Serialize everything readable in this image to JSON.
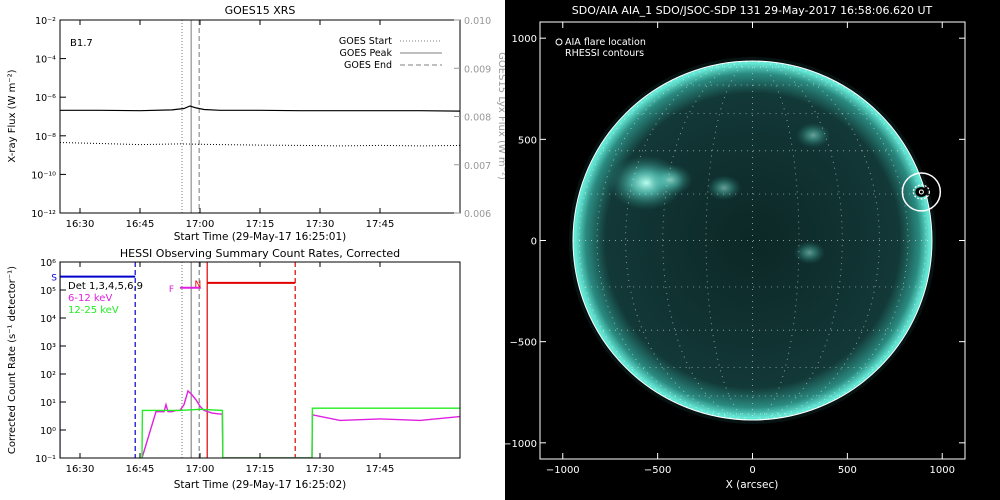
{
  "chart_data": [
    {
      "type": "line",
      "title": "GOES15 XRS",
      "xlabel": "Start Time (29-May-17 16:25:01)",
      "ylabel": "X-ray Flux (W m⁻²)",
      "ylabel_right": "GOES15 Lyx Flux (W m⁻²)",
      "x_unit": "minutes after 16:25",
      "xlim": [
        0,
        100
      ],
      "x_ticks": [
        5,
        20,
        35,
        50,
        65,
        80
      ],
      "x_tick_labels": [
        "16:30",
        "16:45",
        "17:00",
        "17:15",
        "17:30",
        "17:45"
      ],
      "y_scale": "log",
      "ylim": [
        1e-12,
        0.01
      ],
      "y_ticks": [
        1e-12,
        1e-10,
        1e-08,
        1e-06,
        0.0001,
        0.01
      ],
      "y_tick_labels": [
        "10⁻¹²",
        "10⁻¹⁰",
        "10⁻⁸",
        "10⁻⁶",
        "10⁻⁴",
        "10⁻²"
      ],
      "y2lim": [
        0.006,
        0.01
      ],
      "y2_ticks": [
        0.006,
        0.007,
        0.008,
        0.009,
        0.01
      ],
      "y2_tick_labels": [
        "0.006",
        "0.007",
        "0.008",
        "0.009",
        "0.010"
      ],
      "class_label": "B1.7",
      "series": [
        {
          "name": "",
          "style": "solid",
          "color": "#000000",
          "x": [
            0,
            10,
            20,
            28,
            31,
            32.5,
            34,
            36,
            40,
            50,
            60,
            70,
            80,
            90,
            100
          ],
          "y": [
            2.1e-07,
            2.1e-07,
            2e-07,
            2.2e-07,
            2.6e-07,
            3.5e-07,
            2.8e-07,
            2.3e-07,
            2.1e-07,
            2.1e-07,
            2e-07,
            2e-07,
            2e-07,
            2e-07,
            1.9e-07
          ]
        },
        {
          "name": "",
          "style": "dotted",
          "color": "#000000",
          "x": [
            0,
            10,
            20,
            30,
            40,
            50,
            60,
            70,
            80,
            90,
            100
          ],
          "y": [
            4.5e-09,
            4e-09,
            3.5e-09,
            3.8e-09,
            3.5e-09,
            3.3e-09,
            3.2e-09,
            3e-09,
            3.2e-09,
            3e-09,
            3.2e-09
          ]
        }
      ],
      "markers": [
        {
          "name": "GOES Start",
          "x": 30.5,
          "style": "dotted"
        },
        {
          "name": "GOES Peak",
          "x": 32.8,
          "style": "solid"
        },
        {
          "name": "GOES End",
          "x": 34.8,
          "style": "dashed"
        }
      ],
      "legend": [
        "GOES Start",
        "GOES Peak",
        "GOES End"
      ],
      "legend_position": "top-right",
      "grid": false
    },
    {
      "type": "line",
      "title": "HESSI Observing Summary Count Rates, Corrected",
      "xlabel": "Start Time (29-May-17 16:25:02)",
      "ylabel": "Corrected Count Rate (s⁻¹ detector⁻¹)",
      "x_unit": "minutes after 16:25",
      "xlim": [
        0,
        100
      ],
      "x_ticks": [
        5,
        20,
        35,
        50,
        65,
        80
      ],
      "x_tick_labels": [
        "16:30",
        "16:45",
        "17:00",
        "17:15",
        "17:30",
        "17:45"
      ],
      "y_scale": "log",
      "ylim": [
        0.1,
        1000000
      ],
      "y_ticks": [
        0.1,
        1,
        10,
        100,
        1000,
        10000,
        100000,
        1000000
      ],
      "y_tick_labels": [
        "10⁻¹",
        "10⁰",
        "10¹",
        "10²",
        "10³",
        "10⁴",
        "10⁵",
        "10⁶"
      ],
      "legend": [
        "Det 1,3,4,5,6,9",
        "6-12 keV",
        "12-25 keV"
      ],
      "legend_colors": [
        "#000000",
        "#e020e0",
        "#22ee22"
      ],
      "legend_position": "top-left",
      "series": [
        {
          "name": "6-12 keV",
          "color": "#e020e0",
          "x": [
            20.5,
            24,
            26,
            26.5,
            27,
            28,
            29,
            30,
            31,
            32,
            33,
            34,
            35,
            36,
            38,
            40,
            40.6,
            40.7,
            63,
            63.1,
            70,
            80,
            90,
            100
          ],
          "y": [
            0.1,
            4.5,
            4.5,
            8,
            4.5,
            4.5,
            5,
            5,
            8,
            25,
            18,
            12,
            7,
            5,
            4,
            3.7,
            3.7,
            0.1,
            0.1,
            3.5,
            2.2,
            2.5,
            2.2,
            3
          ]
        },
        {
          "name": "12-25 keV",
          "color": "#22ee22",
          "x": [
            20.5,
            20.6,
            30,
            35,
            40.6,
            40.7,
            63,
            63.1,
            70,
            80,
            90,
            100
          ],
          "y": [
            0.1,
            5,
            5,
            5.5,
            5,
            0.1,
            0.1,
            6,
            6,
            6,
            6,
            6
          ]
        }
      ],
      "status_bars": [
        {
          "label": "S",
          "color": "#0000cc",
          "x_start": 0,
          "x_end": 18.8,
          "y": 300000
        },
        {
          "label": "F",
          "color": "#e020e0",
          "x_start": 30,
          "x_end": 35.2,
          "y": 120000
        },
        {
          "label": "N",
          "color": "#e00000",
          "x_start": 36.8,
          "x_end": 58.8,
          "y": 180000
        }
      ],
      "markers": [
        {
          "x": 0,
          "style": "solid",
          "color": "#0000cc"
        },
        {
          "x": 18.8,
          "style": "dashed",
          "color": "#0000cc"
        },
        {
          "x": 30.5,
          "style": "dotted",
          "color": "#888888"
        },
        {
          "x": 32.8,
          "style": "solid",
          "color": "#888888"
        },
        {
          "x": 34.8,
          "style": "dashed",
          "color": "#888888"
        },
        {
          "x": 36.8,
          "style": "solid",
          "color": "#e00000"
        },
        {
          "x": 58.8,
          "style": "dashed",
          "color": "#e00000"
        }
      ],
      "grid": false
    },
    {
      "type": "scatter",
      "title": "SDO/AIA AIA_1 SDO/JSOC-SDP 131 29-May-2017 16:58:06.620 UT",
      "xlabel": "X (arcsec)",
      "ylabel": "",
      "xlim": [
        -1120,
        1120
      ],
      "ylim": [
        -1080,
        1080
      ],
      "x_ticks": [
        -1000,
        -500,
        0,
        500,
        1000
      ],
      "x_tick_labels": [
        "−1000",
        "−500",
        "0",
        "500",
        "1000"
      ],
      "y_ticks": [
        -1000,
        -500,
        0,
        500,
        1000
      ],
      "y_tick_labels": [
        "−1000",
        "−500",
        "0",
        "500",
        "1000"
      ],
      "solar_radius": 946,
      "legend": [
        "AIA flare location",
        "RHESSI contours"
      ],
      "legend_position": "top-left",
      "flare_location": {
        "x": 890,
        "y": 240,
        "circle_radius": 100
      },
      "bright_regions": [
        {
          "x": -560,
          "y": 285,
          "strength": 1.0
        },
        {
          "x": -430,
          "y": 300,
          "strength": 0.45
        },
        {
          "x": 320,
          "y": 520,
          "strength": 0.3
        },
        {
          "x": -150,
          "y": 260,
          "strength": 0.3
        },
        {
          "x": 300,
          "y": -60,
          "strength": 0.25
        }
      ],
      "colors": {
        "disk": "#0c2726",
        "limb": "#63e6d4",
        "background": "#000000"
      },
      "grid": true
    }
  ]
}
